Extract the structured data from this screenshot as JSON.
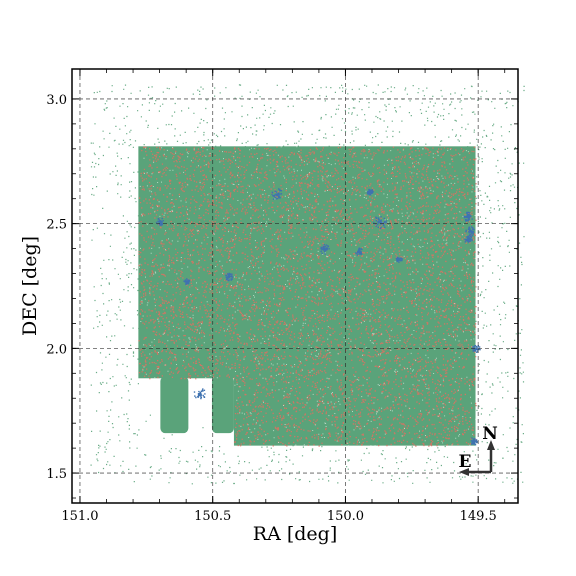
{
  "chart_data": {
    "type": "scatter",
    "title": "",
    "xlabel": "RA [deg]",
    "ylabel": "DEC [deg]",
    "xlim": [
      151.03,
      149.35
    ],
    "ylim": [
      1.38,
      3.12
    ],
    "x_inverted": true,
    "grid": true,
    "grid_style": "dashed",
    "xticks": [
      151.0,
      150.5,
      150.0,
      149.5
    ],
    "xtick_labels": [
      "151.0",
      "150.5",
      "150.0",
      "149.5"
    ],
    "yticks": [
      1.5,
      2.0,
      2.5,
      3.0
    ],
    "ytick_labels": [
      "1.5",
      "2.0",
      "2.5",
      "3.0"
    ],
    "footprint": {
      "ra_range": [
        150.78,
        149.51
      ],
      "dec_range": [
        1.61,
        2.81
      ],
      "notch_lower_left": {
        "ra_range": [
          150.78,
          150.42
        ],
        "dec_range": [
          1.61,
          1.88
        ]
      }
    },
    "series": [
      {
        "color": "#5aa37a",
        "description_style": "dense points"
      },
      {
        "color": "#e07060",
        "description_style": "sparser points"
      },
      {
        "color": "#3f72b0",
        "description_style": "small clusters"
      }
    ],
    "compass": {
      "north": "N",
      "east": "E"
    }
  }
}
